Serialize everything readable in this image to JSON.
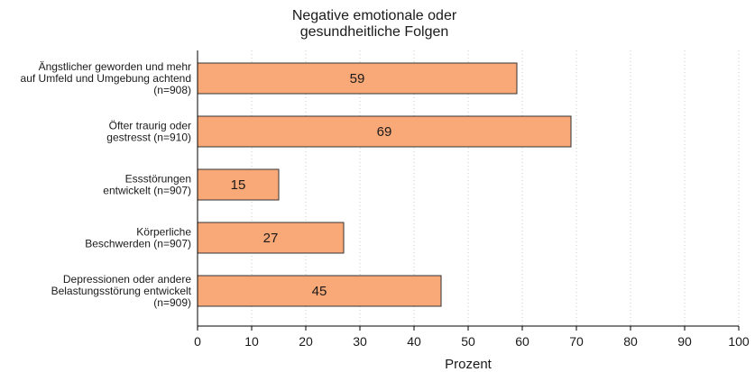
{
  "chart_data": {
    "type": "bar",
    "orientation": "horizontal",
    "title_lines": [
      "Negative emotionale oder",
      "gesundheitliche Folgen"
    ],
    "categories": [
      [
        "Ängstlicher geworden und mehr",
        "auf Umfeld und Umgebung achtend",
        "(n=908)"
      ],
      [
        "Öfter traurig oder",
        "gestresst (n=910)"
      ],
      [
        "Essstörungen",
        "entwickelt (n=907)"
      ],
      [
        "Körperliche",
        "Beschwerden (n=907)"
      ],
      [
        "Depressionen oder andere",
        "Belastungsstörung entwickelt",
        "(n=909)"
      ]
    ],
    "values": [
      59,
      69,
      15,
      27,
      45
    ],
    "value_labels": [
      "59",
      "69",
      "15",
      "27",
      "45"
    ],
    "xlabel": "Prozent",
    "xlim": [
      0,
      100
    ],
    "xticks": [
      0,
      10,
      20,
      30,
      40,
      50,
      60,
      70,
      80,
      90,
      100
    ],
    "grid": "vertical-dotted",
    "bar_color": "#f9a877",
    "bar_edge_color": "#333333"
  }
}
